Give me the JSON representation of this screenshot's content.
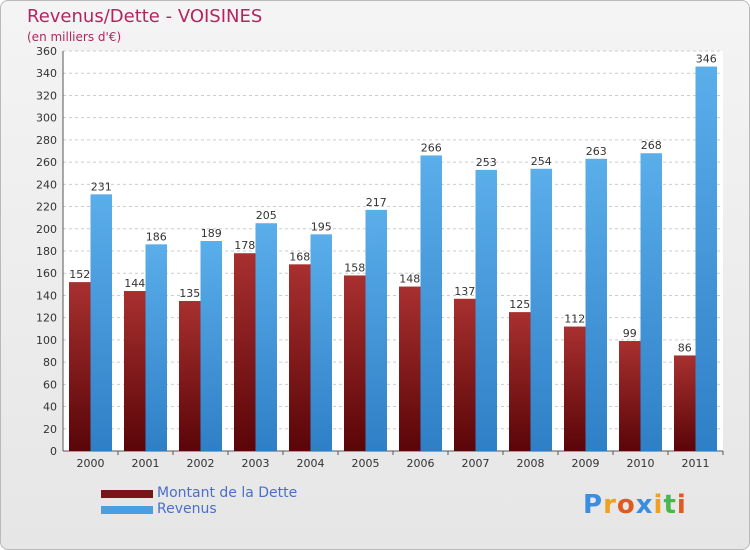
{
  "chart_data": {
    "type": "bar",
    "title": "Revenus/Dette - VOISINES",
    "subtitle": "(en milliers d'€)",
    "categories": [
      "2000",
      "2001",
      "2002",
      "2003",
      "2004",
      "2005",
      "2006",
      "2007",
      "2008",
      "2009",
      "2010",
      "2011"
    ],
    "series": [
      {
        "name": "Montant de la Dette",
        "color": "#7b1418",
        "values": [
          152,
          144,
          135,
          178,
          168,
          158,
          148,
          137,
          125,
          112,
          99,
          86
        ]
      },
      {
        "name": "Revenus",
        "color": "#4a9fe2",
        "values": [
          231,
          186,
          189,
          205,
          195,
          217,
          266,
          253,
          254,
          263,
          268,
          346
        ]
      }
    ],
    "ylim": [
      0,
      360
    ],
    "yticks": [
      0,
      20,
      40,
      60,
      80,
      100,
      120,
      140,
      160,
      180,
      200,
      220,
      240,
      260,
      280,
      300,
      320,
      340,
      360
    ],
    "grid": true,
    "legend_position": "bottom-left"
  },
  "logo": {
    "letters": [
      "P",
      "r",
      "o",
      "x",
      "i",
      "t",
      "i"
    ],
    "colors": [
      "#3b8de0",
      "#f0a020",
      "#e05a20",
      "#3b8de0",
      "#f0a020",
      "#48b848",
      "#e05a20"
    ]
  }
}
